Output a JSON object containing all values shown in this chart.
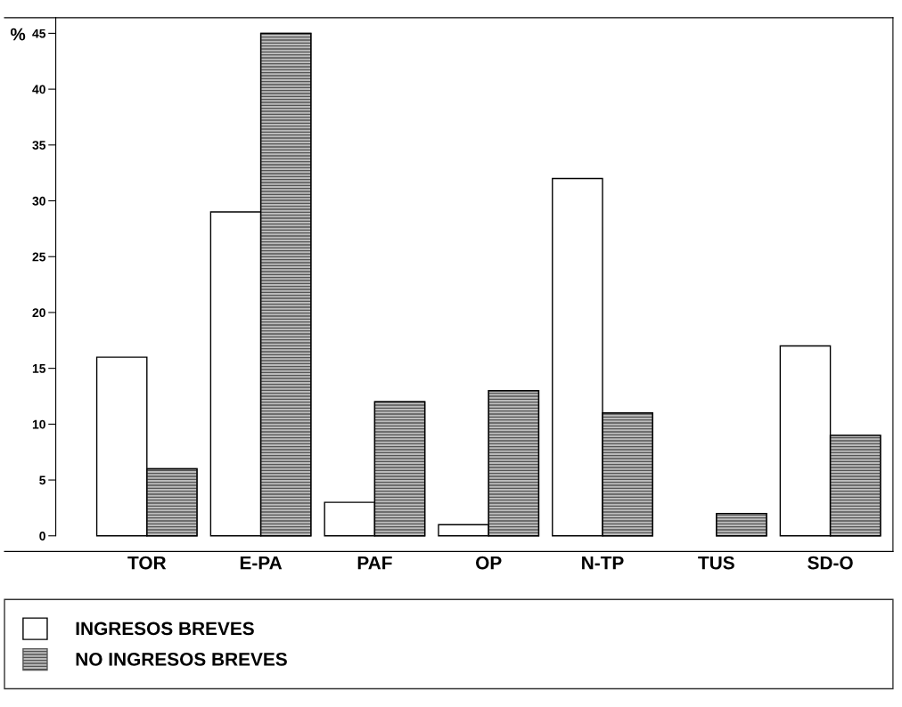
{
  "chart_data": {
    "type": "bar",
    "ylabel": "%",
    "categories": [
      "TOR",
      "E-PA",
      "PAF",
      "OP",
      "N-TP",
      "TUS",
      "SD-O"
    ],
    "series": [
      {
        "name": "INGRESOS BREVES",
        "color": "#ffffff",
        "values": [
          16,
          29,
          3,
          1,
          32,
          null,
          17
        ]
      },
      {
        "name": "NO INGRESOS BREVES",
        "color": "#555555",
        "values": [
          6,
          45,
          12,
          13,
          11,
          2,
          9
        ]
      }
    ],
    "ylim": [
      -1.4,
      46.4
    ],
    "yticks": [
      0,
      5,
      10,
      15,
      20,
      25,
      30,
      35,
      40,
      45
    ],
    "grid": false,
    "legend": "bottom"
  }
}
